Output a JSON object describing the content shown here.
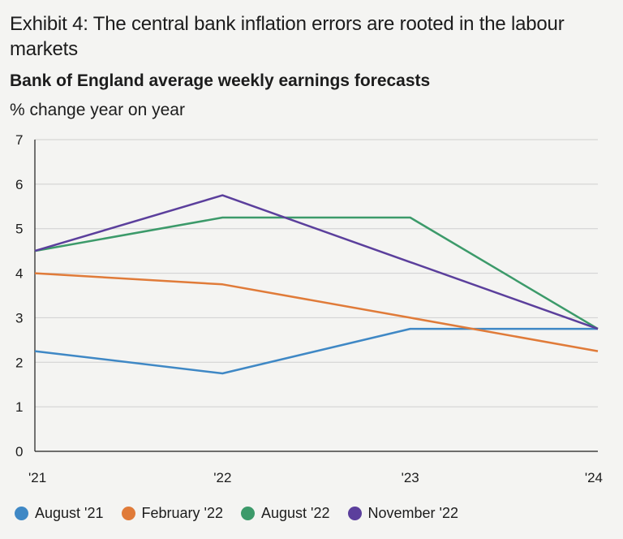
{
  "chart_data": {
    "type": "line",
    "title": "Exhibit 4: The central bank inflation errors are rooted in the labour markets",
    "subtitle": "Bank of England average weekly earnings forecasts",
    "ylabel": "% change year on year",
    "x": [
      "'21",
      "'22",
      "'23",
      "'24"
    ],
    "ylim": [
      0,
      7
    ],
    "yticks": [
      0,
      1,
      2,
      3,
      4,
      5,
      6,
      7
    ],
    "grid": true,
    "legend_position": "bottom",
    "series": [
      {
        "name": "August '21",
        "color": "#3f88c5",
        "values": [
          2.25,
          1.75,
          2.75,
          2.75
        ]
      },
      {
        "name": "February '22",
        "color": "#e07b39",
        "values": [
          4.0,
          3.75,
          3.0,
          2.25
        ]
      },
      {
        "name": "August '22",
        "color": "#3c9a6a",
        "values": [
          4.5,
          5.25,
          5.25,
          2.75
        ]
      },
      {
        "name": "November '22",
        "color": "#5b3f9c",
        "values": [
          4.5,
          5.75,
          4.25,
          2.75
        ]
      }
    ]
  }
}
